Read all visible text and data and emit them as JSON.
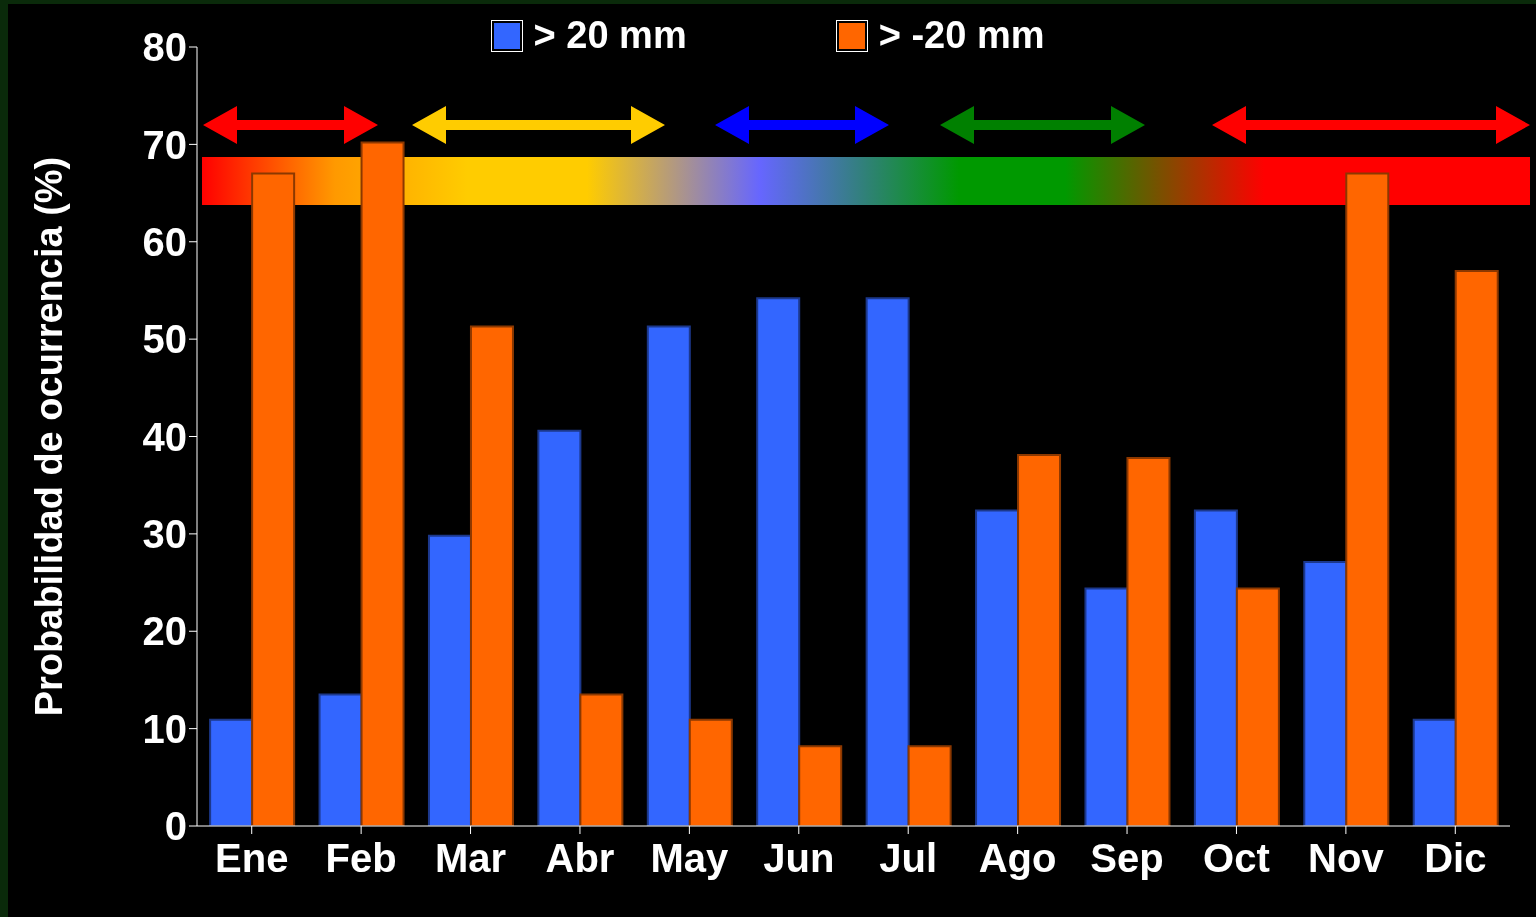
{
  "chart_data": {
    "type": "bar",
    "ylabel": "Probabilidad de ocurrencia (%)",
    "categories": [
      "Ene",
      "Feb",
      "Mar",
      "Abr",
      "May",
      "Jun",
      "Jul",
      "Ago",
      "Sep",
      "Oct",
      "Nov",
      "Dic"
    ],
    "series": [
      {
        "name": "> 20 mm",
        "color": "#3366ff",
        "values": [
          10.9,
          13.5,
          29.8,
          40.6,
          51.3,
          54.2,
          54.2,
          32.4,
          24.4,
          32.4,
          27.1,
          10.9
        ]
      },
      {
        "name": "> -20 mm",
        "color": "#ff6600",
        "values": [
          67,
          70.2,
          51.3,
          13.5,
          10.9,
          8.2,
          8.2,
          38.1,
          37.8,
          24.4,
          67,
          57
        ]
      }
    ],
    "ylim": [
      0,
      80
    ],
    "yticks": [
      0,
      10,
      20,
      30,
      40,
      50,
      60,
      70,
      80
    ],
    "grid": false,
    "legend": "top"
  }
}
